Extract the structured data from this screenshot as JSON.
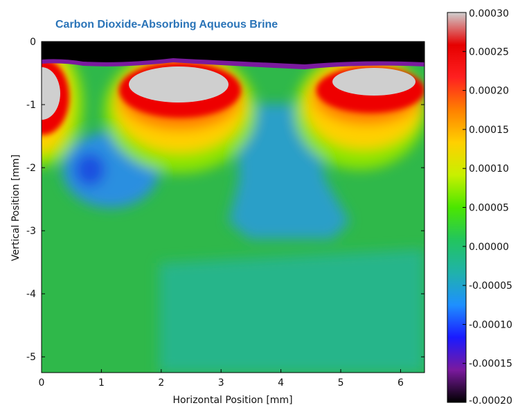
{
  "chart_data": {
    "type": "heatmap",
    "title": "Carbon Dioxide-Absorbing Aqueous Brine",
    "xlabel": "Horizontal Position [mm]",
    "ylabel": "Vertical Position [mm]",
    "xlim": [
      0,
      6.4
    ],
    "ylim": [
      -5.25,
      0
    ],
    "x_ticks": [
      "0",
      "1",
      "2",
      "3",
      "4",
      "5",
      "6"
    ],
    "y_ticks": [
      "0",
      "-1",
      "-2",
      "-3",
      "-4",
      "-5"
    ],
    "x_tick_values": [
      0,
      1,
      2,
      3,
      4,
      5,
      6
    ],
    "y_tick_values": [
      0,
      -1,
      -2,
      -3,
      -4,
      -5
    ],
    "colorbar": {
      "min": -0.0002,
      "max": 0.0003,
      "ticks": [
        "0.00030",
        "0.00025",
        "0.00020",
        "0.00015",
        "0.00010",
        "0.00005",
        "0.00000",
        "-0.00005",
        "-0.00010",
        "-0.00015",
        "-0.00020"
      ],
      "tick_values": [
        0.0003,
        0.00025,
        0.0002,
        0.00015,
        0.0001,
        5e-05,
        0,
        -5e-05,
        -0.0001,
        -0.00015,
        -0.0002
      ],
      "colors": [
        "#000000",
        "#7a1a9e",
        "#1a1aff",
        "#1e90ff",
        "#20b2aa",
        "#22c55e",
        "#4be600",
        "#c8f000",
        "#ffd000",
        "#ff8000",
        "#ff2020",
        "#e60000",
        "#cfcfcf"
      ]
    },
    "regions": [
      {
        "name": "surface depletion layer",
        "x": [
          0,
          6.4
        ],
        "y": [
          -0.35,
          0
        ],
        "value": -0.0002
      },
      {
        "name": "high concentration plume",
        "x": [
          1.5,
          3.2
        ],
        "y": [
          -1.0,
          -0.4
        ],
        "value": 0.0003
      },
      {
        "name": "high concentration plume",
        "x": [
          4.8,
          6.1
        ],
        "y": [
          -0.85,
          -0.45
        ],
        "value": 0.0003
      },
      {
        "name": "high concentration plume",
        "x": [
          0,
          0.35
        ],
        "y": [
          -1.3,
          -0.45
        ],
        "value": 0.0003
      },
      {
        "name": "low concentration pocket",
        "x": [
          0.6,
          1.0
        ],
        "y": [
          -2.4,
          -1.9
        ],
        "value": -0.0001
      },
      {
        "name": "low concentration column",
        "x": [
          3.1,
          4.9
        ],
        "y": [
          -3.1,
          -1.6
        ],
        "value": -4e-05
      }
    ],
    "grid": false
  }
}
